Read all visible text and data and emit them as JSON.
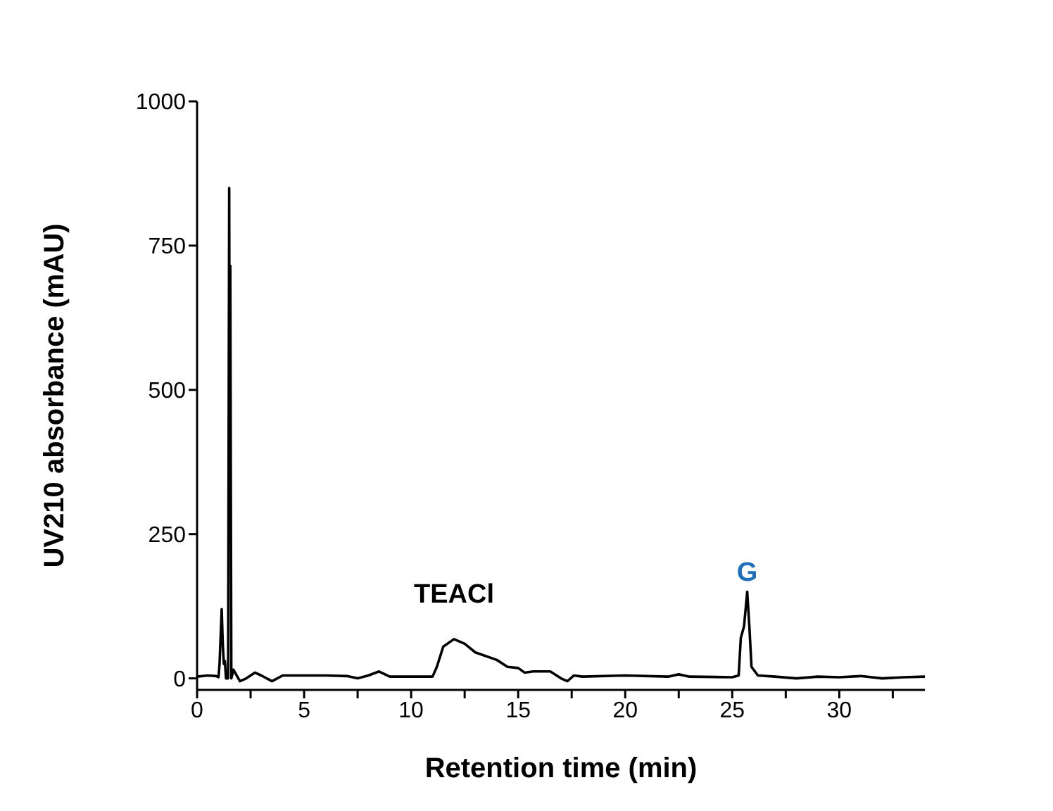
{
  "chart_data": {
    "type": "line",
    "xlabel": "Retention time (min)",
    "ylabel": "UV210 absorbance (mAU)",
    "xlim": [
      0,
      34
    ],
    "ylim": [
      -20,
      1000
    ],
    "xticks": [
      0,
      {
        "value": 2.5,
        "label": null
      },
      5,
      {
        "value": 7.5,
        "label": null
      },
      10,
      {
        "value": 12.5,
        "label": null
      },
      15,
      {
        "value": 17.5,
        "label": null
      },
      20,
      {
        "value": 22.5,
        "label": null
      },
      25,
      {
        "value": 27.5,
        "label": null
      },
      30,
      {
        "value": 32.5,
        "label": null
      }
    ],
    "yticks": [
      0,
      250,
      500,
      750,
      1000
    ],
    "x": [
      0,
      0.5,
      0.9,
      1.0,
      1.05,
      1.15,
      1.2,
      1.25,
      1.3,
      1.35,
      1.45,
      1.5,
      1.52,
      1.55,
      1.6,
      1.7,
      2.0,
      2.3,
      2.7,
      3.0,
      3.5,
      4,
      5,
      6,
      7,
      7.5,
      8,
      8.5,
      9,
      10,
      11,
      11.2,
      11.5,
      12,
      12.5,
      13,
      14,
      14.5,
      15,
      15.3,
      15.7,
      16.5,
      17,
      17.3,
      17.6,
      18,
      20,
      22,
      22.5,
      23,
      25,
      25.3,
      25.4,
      25.55,
      25.7,
      25.8,
      25.9,
      26.2,
      27,
      28,
      29,
      30,
      31,
      32,
      33,
      34
    ],
    "series": [
      {
        "color": "#000000",
        "values": [
          3,
          5,
          4,
          2,
          25,
          120,
          60,
          25,
          30,
          0,
          0,
          850,
          450,
          715,
          0,
          15,
          -5,
          0,
          10,
          5,
          -5,
          5,
          5,
          5,
          4,
          0,
          5,
          12,
          3,
          3,
          3,
          20,
          55,
          68,
          60,
          45,
          32,
          20,
          18,
          10,
          12,
          12,
          0,
          -5,
          5,
          3,
          5,
          3,
          7,
          3,
          2,
          5,
          70,
          90,
          150,
          90,
          20,
          5,
          3,
          0,
          3,
          2,
          4,
          0,
          2,
          3
        ]
      }
    ],
    "annotations": [
      {
        "text": "TEACl",
        "x": 12,
        "y": 68
      },
      {
        "text": "G",
        "x": 25.7,
        "y": 150
      }
    ],
    "grid": false,
    "legend": false,
    "marker": "none",
    "line_style": "solid"
  }
}
